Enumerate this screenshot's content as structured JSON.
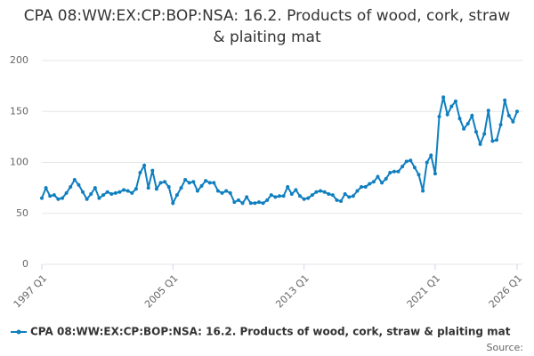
{
  "chart_data": {
    "type": "line",
    "title": "CPA 08:WW:EX:CP:BOP:NSA: 16.2. Products of wood, cork, straw & plaiting mat",
    "source": "Source:",
    "categories": [
      "1997 Q1",
      null,
      null,
      null,
      null,
      null,
      null,
      null,
      null,
      null,
      null,
      null,
      null,
      null,
      null,
      null,
      null,
      null,
      null,
      null,
      null,
      null,
      null,
      null,
      null,
      null,
      null,
      null,
      null,
      null,
      null,
      null,
      "2005 Q1",
      null,
      null,
      null,
      null,
      null,
      null,
      null,
      null,
      null,
      null,
      null,
      null,
      null,
      null,
      null,
      null,
      null,
      null,
      null,
      null,
      null,
      null,
      null,
      null,
      null,
      null,
      null,
      null,
      null,
      null,
      null,
      "2013 Q1",
      null,
      null,
      null,
      null,
      null,
      null,
      null,
      null,
      null,
      null,
      null,
      null,
      null,
      null,
      null,
      null,
      null,
      null,
      null,
      null,
      null,
      null,
      null,
      null,
      null,
      null,
      null,
      null,
      null,
      null,
      null,
      "2021 Q1",
      null,
      null,
      null,
      null,
      null,
      null,
      null,
      null,
      null,
      null,
      null,
      null,
      null,
      null,
      null,
      null,
      null,
      null,
      null,
      "2026 Q1"
    ],
    "series": [
      {
        "name": "CPA 08:WW:EX:CP:BOP:NSA: 16.2. Products of wood, cork, straw & plaiting mat",
        "color": "#0f7fbf",
        "values": [
          65,
          75,
          67,
          68,
          64,
          65,
          70,
          76,
          83,
          78,
          71,
          64,
          69,
          75,
          65,
          68,
          71,
          69,
          70,
          71,
          73,
          72,
          70,
          74,
          90,
          97,
          75,
          92,
          74,
          80,
          81,
          76,
          60,
          68,
          75,
          83,
          80,
          81,
          72,
          77,
          82,
          80,
          80,
          72,
          70,
          72,
          70,
          61,
          63,
          60,
          66,
          60,
          60,
          61,
          60,
          63,
          68,
          66,
          67,
          67,
          76,
          69,
          73,
          67,
          64,
          65,
          68,
          71,
          72,
          71,
          69,
          68,
          63,
          62,
          69,
          66,
          67,
          72,
          76,
          76,
          79,
          81,
          86,
          80,
          84,
          90,
          91,
          91,
          96,
          101,
          102,
          95,
          88,
          72,
          100,
          107,
          89,
          145,
          164,
          147,
          155,
          160,
          143,
          133,
          138,
          146,
          130,
          118,
          128,
          151,
          121,
          122,
          137,
          161,
          146,
          140,
          150
        ]
      }
    ],
    "ylim": [
      0,
      200
    ],
    "yticks": [
      0,
      50,
      100,
      150,
      200
    ],
    "grid": true,
    "legend": "bottom"
  }
}
